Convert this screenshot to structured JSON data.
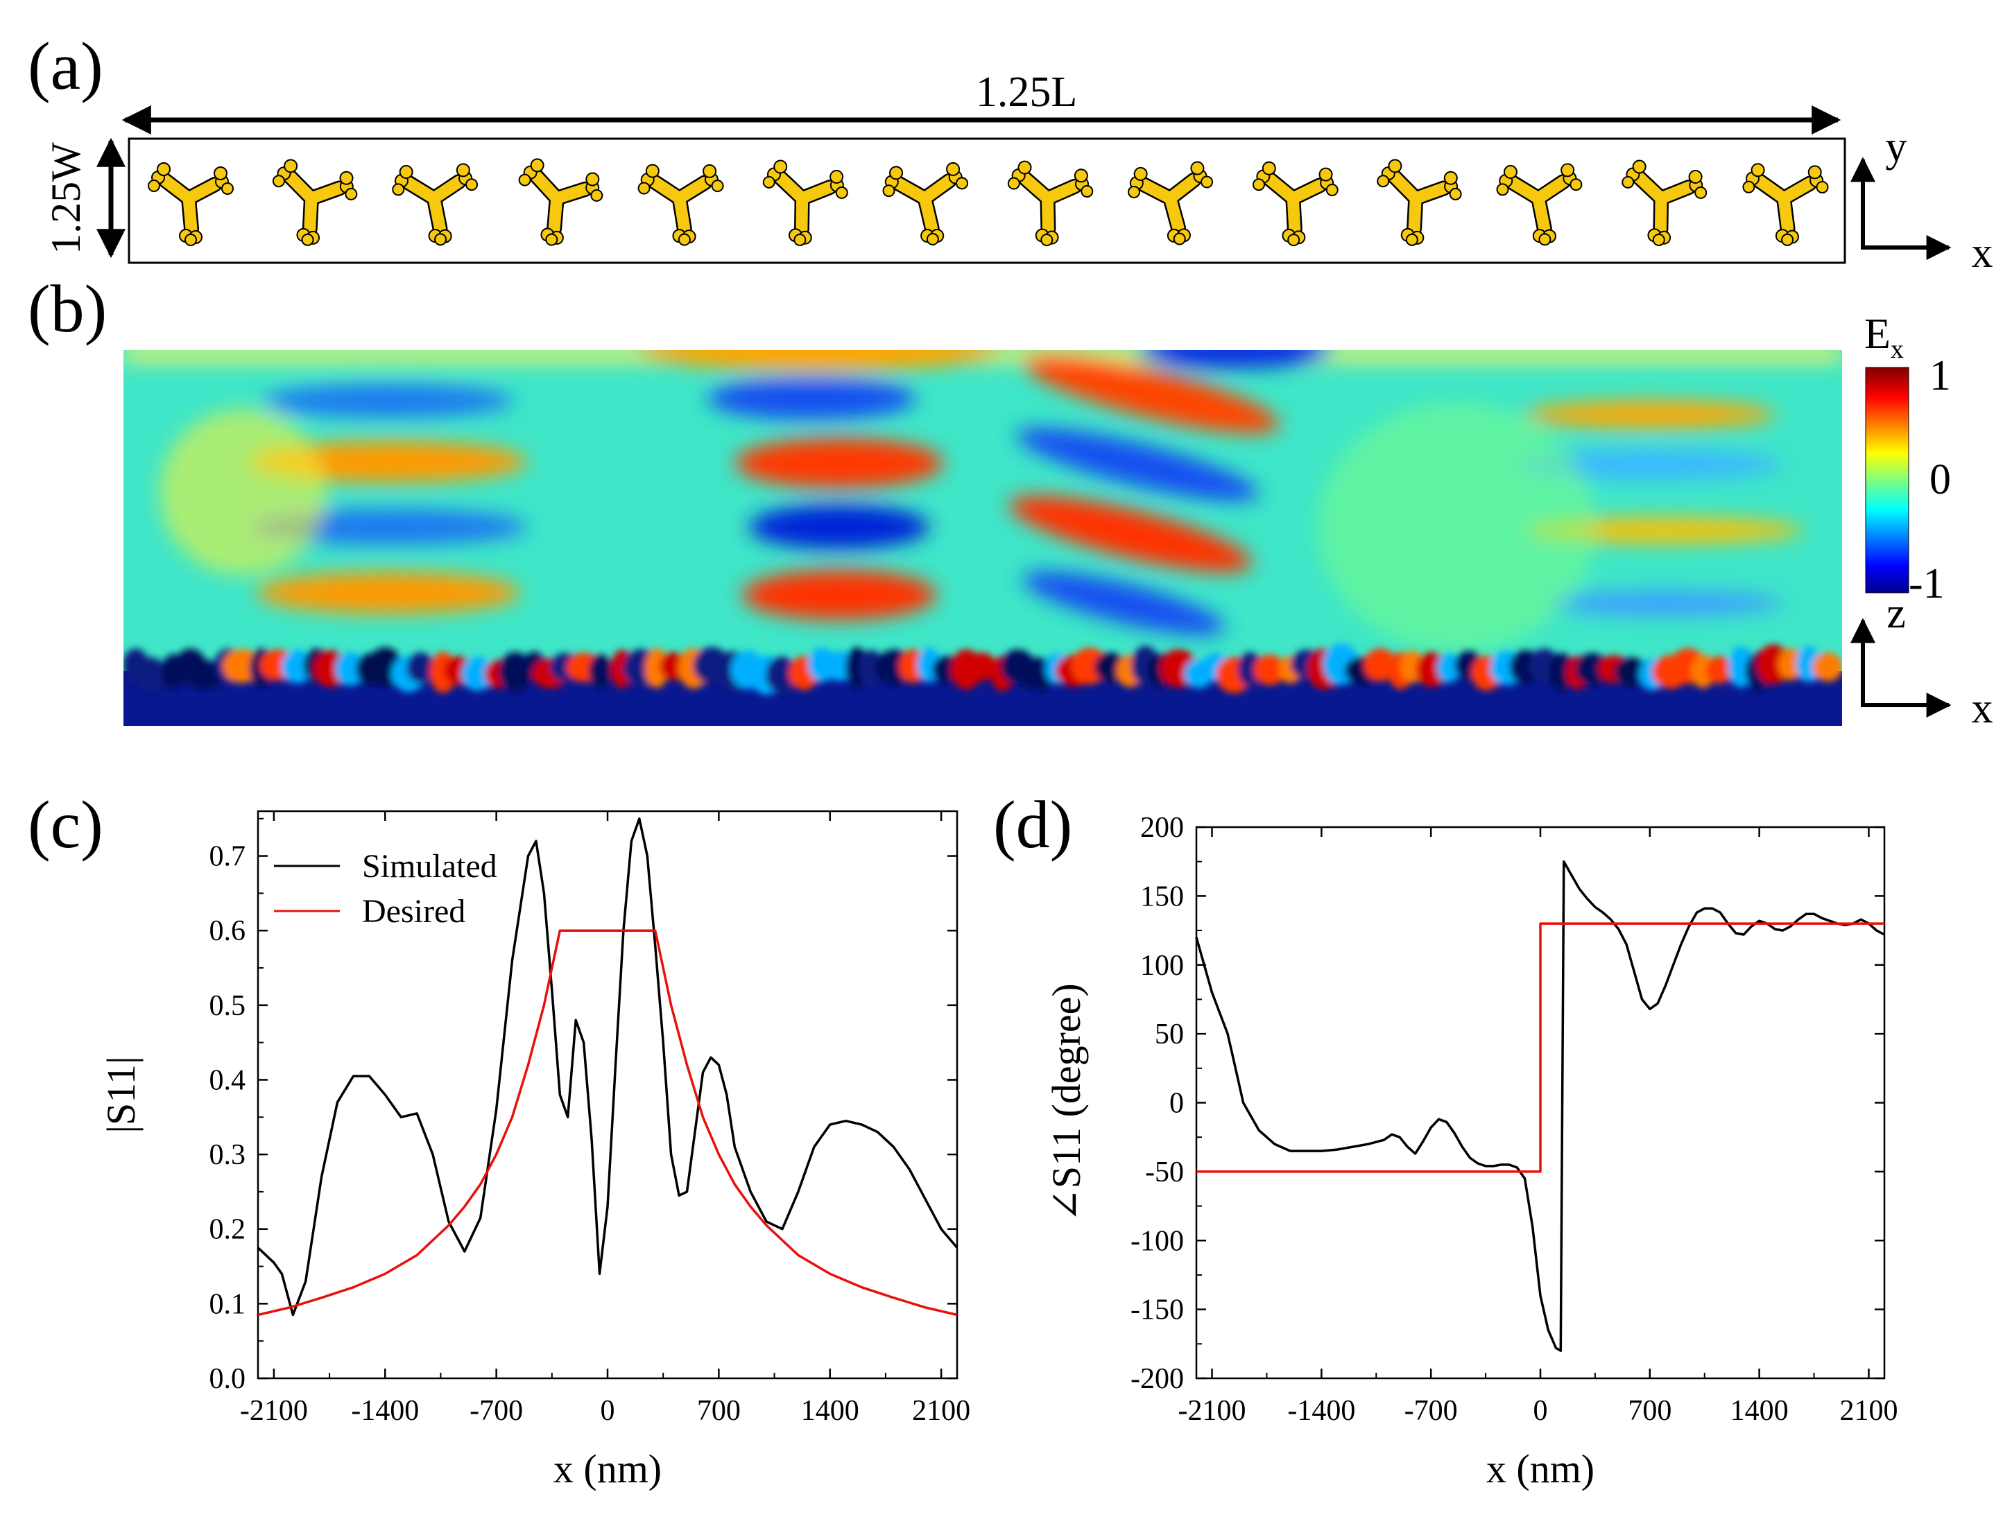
{
  "panels": {
    "a": {
      "label": "(a)",
      "length_label": "1.25L",
      "width_label": "1.25W",
      "axis_y": "y",
      "axis_x": "x",
      "unit_cell_count": 14,
      "particle_color": "#F7C90E"
    },
    "b": {
      "label": "(b)",
      "colorbar_title": "E",
      "colorbar_subscript": "x",
      "colorbar_max": "1",
      "colorbar_mid": "0",
      "colorbar_min": "-1",
      "axis_z": "z",
      "axis_x": "x"
    },
    "c": {
      "label": "(c)"
    },
    "d": {
      "label": "(d)"
    }
  },
  "chart_data": [
    {
      "id": "c",
      "type": "line",
      "xlabel": "x (nm)",
      "ylabel": "|S11|",
      "xlim": [
        -2200,
        2200
      ],
      "ylim": [
        0,
        0.76
      ],
      "xticks": [
        -2100,
        -1400,
        -700,
        0,
        700,
        1400,
        2100
      ],
      "yticks": [
        0.0,
        0.1,
        0.2,
        0.3,
        0.4,
        0.5,
        0.6,
        0.7
      ],
      "xtick_labels": [
        "-2100",
        "-1400",
        "-700",
        "0",
        "700",
        "1400",
        "2100"
      ],
      "ytick_labels": [
        "0.0",
        "0.1",
        "0.2",
        "0.3",
        "0.4",
        "0.5",
        "0.6",
        "0.7"
      ],
      "legend_position": "top-left",
      "series": [
        {
          "name": "Simulated",
          "color": "#000000",
          "x": [
            -2200,
            -2100,
            -2050,
            -1980,
            -1900,
            -1800,
            -1700,
            -1600,
            -1500,
            -1400,
            -1300,
            -1200,
            -1100,
            -1000,
            -900,
            -800,
            -700,
            -600,
            -500,
            -450,
            -400,
            -350,
            -300,
            -250,
            -200,
            -150,
            -100,
            -50,
            0,
            50,
            100,
            150,
            200,
            250,
            300,
            350,
            400,
            450,
            500,
            550,
            600,
            650,
            700,
            750,
            800,
            900,
            1000,
            1100,
            1200,
            1300,
            1400,
            1500,
            1600,
            1700,
            1800,
            1900,
            2000,
            2100,
            2200
          ],
          "values": [
            0.175,
            0.155,
            0.14,
            0.085,
            0.13,
            0.27,
            0.37,
            0.405,
            0.405,
            0.38,
            0.35,
            0.355,
            0.3,
            0.21,
            0.17,
            0.215,
            0.36,
            0.56,
            0.7,
            0.72,
            0.65,
            0.52,
            0.38,
            0.35,
            0.48,
            0.45,
            0.32,
            0.14,
            0.23,
            0.42,
            0.6,
            0.72,
            0.75,
            0.7,
            0.58,
            0.45,
            0.3,
            0.245,
            0.25,
            0.33,
            0.41,
            0.43,
            0.42,
            0.38,
            0.31,
            0.25,
            0.21,
            0.2,
            0.25,
            0.31,
            0.34,
            0.345,
            0.34,
            0.33,
            0.31,
            0.28,
            0.24,
            0.2,
            0.175
          ]
        },
        {
          "name": "Desired",
          "color": "#E8100B",
          "x": [
            -2200,
            -2000,
            -1800,
            -1600,
            -1400,
            -1200,
            -1000,
            -900,
            -800,
            -700,
            -600,
            -500,
            -450,
            -400,
            -350,
            -310,
            -300,
            300,
            310,
            350,
            400,
            450,
            500,
            600,
            700,
            800,
            900,
            1000,
            1200,
            1400,
            1600,
            1800,
            2000,
            2200
          ],
          "values": [
            0.085,
            0.095,
            0.108,
            0.122,
            0.14,
            0.165,
            0.205,
            0.23,
            0.26,
            0.3,
            0.35,
            0.42,
            0.46,
            0.5,
            0.55,
            0.59,
            0.6,
            0.6,
            0.59,
            0.55,
            0.5,
            0.46,
            0.42,
            0.35,
            0.3,
            0.26,
            0.23,
            0.205,
            0.165,
            0.14,
            0.122,
            0.108,
            0.095,
            0.085
          ]
        }
      ]
    },
    {
      "id": "d",
      "type": "line",
      "xlabel": "x (nm)",
      "ylabel": "∠S11 (degree)",
      "xlim": [
        -2200,
        2200
      ],
      "ylim": [
        -200,
        200
      ],
      "xticks": [
        -2100,
        -1400,
        -700,
        0,
        700,
        1400,
        2100
      ],
      "yticks": [
        -200,
        -150,
        -100,
        -50,
        0,
        50,
        100,
        150,
        200
      ],
      "xtick_labels": [
        "-2100",
        "-1400",
        "-700",
        "0",
        "700",
        "1400",
        "2100"
      ],
      "ytick_labels": [
        "-200",
        "-150",
        "-100",
        "-50",
        "0",
        "50",
        "100",
        "150",
        "200"
      ],
      "series": [
        {
          "name": "Simulated",
          "color": "#000000",
          "x": [
            -2200,
            -2100,
            -2000,
            -1950,
            -1900,
            -1800,
            -1700,
            -1600,
            -1500,
            -1400,
            -1300,
            -1200,
            -1100,
            -1000,
            -950,
            -900,
            -850,
            -800,
            -750,
            -700,
            -650,
            -600,
            -550,
            -500,
            -450,
            -400,
            -350,
            -300,
            -250,
            -200,
            -150,
            -100,
            -50,
            0,
            50,
            100,
            130,
            150,
            200,
            250,
            300,
            350,
            400,
            450,
            500,
            550,
            600,
            650,
            700,
            750,
            800,
            850,
            900,
            950,
            1000,
            1050,
            1100,
            1150,
            1200,
            1250,
            1300,
            1350,
            1400,
            1450,
            1500,
            1550,
            1600,
            1650,
            1700,
            1750,
            1800,
            1850,
            1900,
            1950,
            2000,
            2050,
            2100,
            2150,
            2200
          ],
          "values": [
            120,
            80,
            50,
            25,
            0,
            -20,
            -30,
            -35,
            -35,
            -35,
            -34,
            -32,
            -30,
            -27,
            -23,
            -25,
            -32,
            -37,
            -28,
            -18,
            -12,
            -14,
            -22,
            -32,
            -40,
            -44,
            -46,
            -46,
            -45,
            -45,
            -47,
            -55,
            -90,
            -140,
            -165,
            -178,
            -180,
            175,
            165,
            155,
            148,
            142,
            138,
            133,
            126,
            115,
            95,
            75,
            68,
            72,
            85,
            100,
            115,
            128,
            138,
            141,
            141,
            138,
            130,
            123,
            122,
            128,
            132,
            130,
            126,
            125,
            128,
            133,
            137,
            137,
            134,
            132,
            130,
            129,
            130,
            133,
            130,
            125,
            122
          ]
        },
        {
          "name": "Desired",
          "color": "#E8100B",
          "x": [
            -2200,
            0,
            0,
            2200
          ],
          "values": [
            -50,
            -50,
            130,
            130
          ]
        }
      ]
    }
  ]
}
